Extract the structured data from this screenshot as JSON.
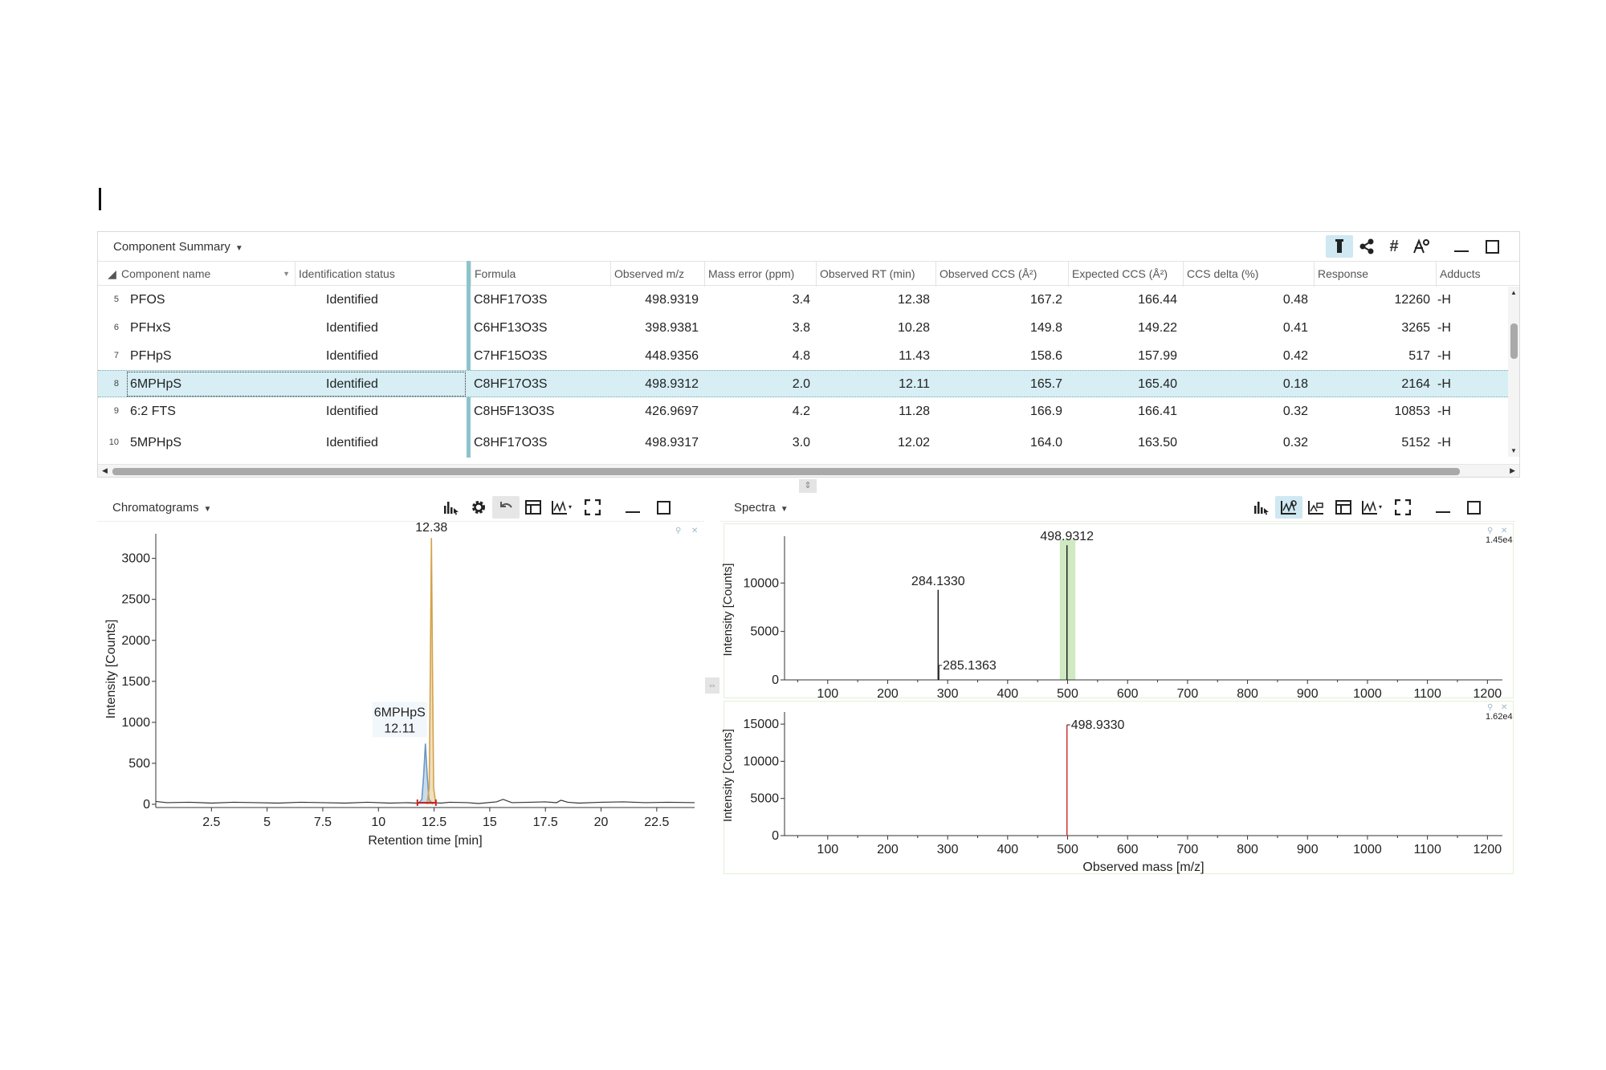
{
  "summary": {
    "title": "Component Summary",
    "columns": [
      "Component name",
      "Identification status",
      "Formula",
      "Observed m/z",
      "Mass error (ppm)",
      "Observed RT (min)",
      "Observed CCS (Å²)",
      "Expected CCS (Å²)",
      "CCS delta (%)",
      "Response",
      "Adducts"
    ],
    "rows": [
      {
        "num": "5",
        "name": "PFOS",
        "status": "Identified",
        "formula": "C8HF17O3S",
        "mz": "498.9319",
        "err": "3.4",
        "rt": "12.38",
        "occs": "167.2",
        "eccs": "166.44",
        "delta": "0.48",
        "response": "12260",
        "adduct": "-H"
      },
      {
        "num": "6",
        "name": "PFHxS",
        "status": "Identified",
        "formula": "C6HF13O3S",
        "mz": "398.9381",
        "err": "3.8",
        "rt": "10.28",
        "occs": "149.8",
        "eccs": "149.22",
        "delta": "0.41",
        "response": "3265",
        "adduct": "-H"
      },
      {
        "num": "7",
        "name": "PFHpS",
        "status": "Identified",
        "formula": "C7HF15O3S",
        "mz": "448.9356",
        "err": "4.8",
        "rt": "11.43",
        "occs": "158.6",
        "eccs": "157.99",
        "delta": "0.42",
        "response": "517",
        "adduct": "-H"
      },
      {
        "num": "8",
        "name": "6MPHpS",
        "status": "Identified",
        "formula": "C8HF17O3S",
        "mz": "498.9312",
        "err": "2.0",
        "rt": "12.11",
        "occs": "165.7",
        "eccs": "165.40",
        "delta": "0.18",
        "response": "2164",
        "adduct": "-H"
      },
      {
        "num": "9",
        "name": "6:2 FTS",
        "status": "Identified",
        "formula": "C8H5F13O3S",
        "mz": "426.9697",
        "err": "4.2",
        "rt": "11.28",
        "occs": "166.9",
        "eccs": "166.41",
        "delta": "0.32",
        "response": "10853",
        "adduct": "-H"
      },
      {
        "num": "10",
        "name": "5MPHpS",
        "status": "Identified",
        "formula": "C8HF17O3S",
        "mz": "498.9317",
        "err": "3.0",
        "rt": "12.02",
        "occs": "164.0",
        "eccs": "163.50",
        "delta": "0.32",
        "response": "5152",
        "adduct": "-H"
      }
    ],
    "selected_row": 3
  },
  "chromatograms": {
    "title": "Chromatograms",
    "peak_label_main": "12.38",
    "peak_label_component": "6MPHpS",
    "peak_label_component_rt": "12.11"
  },
  "spectra": {
    "title": "Spectra",
    "top_scale": "1.45e4",
    "bottom_scale": "1.62e4"
  },
  "chart_data": [
    {
      "type": "line",
      "panel": "Chromatograms",
      "xlabel": "Retention time [min]",
      "ylabel": "Intensity [Counts]",
      "xlim": [
        0,
        24.2
      ],
      "ylim": [
        0,
        3300
      ],
      "x_ticks": [
        2.5,
        5,
        7.5,
        10,
        12.5,
        15,
        17.5,
        20,
        22.5
      ],
      "x_tick_labels": [
        "2.5",
        "5",
        "7.5",
        "10",
        "12.5",
        "15",
        "17.5",
        "20",
        "22.5"
      ],
      "y_ticks": [
        0,
        500,
        1000,
        1500,
        2000,
        2500,
        3000
      ],
      "y_tick_labels": [
        "0",
        "500",
        "1000",
        "1500",
        "2000",
        "2500",
        "3000"
      ],
      "series": [
        {
          "color": "#333333",
          "x": [
            0,
            0.5,
            1.5,
            2.5,
            3.5,
            4.5,
            5.5,
            6.5,
            7.5,
            8.5,
            9.5,
            10.5,
            11.3,
            11.7,
            12.0,
            12.5,
            12.8,
            13.2,
            14.0,
            14.5,
            15.3,
            15.6,
            16.0,
            16.8,
            17.5,
            18.0,
            18.2,
            18.5,
            19.0,
            20.0,
            21.0,
            22.0,
            23.0,
            24.2
          ],
          "y": [
            35,
            20,
            25,
            15,
            25,
            20,
            15,
            25,
            20,
            15,
            25,
            15,
            20,
            15,
            25,
            20,
            15,
            25,
            20,
            10,
            30,
            60,
            20,
            25,
            30,
            20,
            50,
            25,
            15,
            25,
            30,
            20,
            25,
            20
          ]
        },
        {
          "color": "#6a97c2",
          "x": [
            11.75,
            11.95,
            12.03,
            12.11,
            12.19,
            12.27,
            12.45
          ],
          "y": [
            0,
            60,
            350,
            740,
            350,
            60,
            0
          ]
        },
        {
          "color": "#d4a24a",
          "x": [
            12.18,
            12.28,
            12.33,
            12.38,
            12.43,
            12.48,
            12.58
          ],
          "y": [
            0,
            200,
            1600,
            3250,
            1600,
            200,
            0
          ]
        }
      ]
    },
    {
      "type": "bar",
      "panel": "Spectra (top)",
      "xlabel": "",
      "ylabel": "Intensity [Counts]",
      "xlim": [
        28,
        1225
      ],
      "ylim": [
        0,
        14500
      ],
      "x_ticks": [
        100,
        200,
        300,
        400,
        500,
        600,
        700,
        800,
        900,
        1000,
        1100,
        1200
      ],
      "y_ticks": [
        0,
        5000,
        10000
      ],
      "peaks": [
        {
          "mz": 284.133,
          "intensity": 9300,
          "label": "284.1330"
        },
        {
          "mz": 285.1363,
          "intensity": 1500,
          "label": "285.1363"
        },
        {
          "mz": 498.9312,
          "intensity": 13900,
          "label": "498.9312"
        }
      ],
      "highlight_window": [
        487,
        513
      ],
      "peak_color": "#222222"
    },
    {
      "type": "bar",
      "panel": "Spectra (bottom)",
      "xlabel": "Observed mass [m/z]",
      "ylabel": "Intensity [Counts]",
      "xlim": [
        28,
        1225
      ],
      "ylim": [
        0,
        16200
      ],
      "x_ticks": [
        100,
        200,
        300,
        400,
        500,
        600,
        700,
        800,
        900,
        1000,
        1100,
        1200
      ],
      "y_ticks": [
        0,
        5000,
        10000,
        15000
      ],
      "peaks": [
        {
          "mz": 498.933,
          "intensity": 14900,
          "label": "498.9330"
        }
      ],
      "peak_color": "#cc3333"
    }
  ]
}
